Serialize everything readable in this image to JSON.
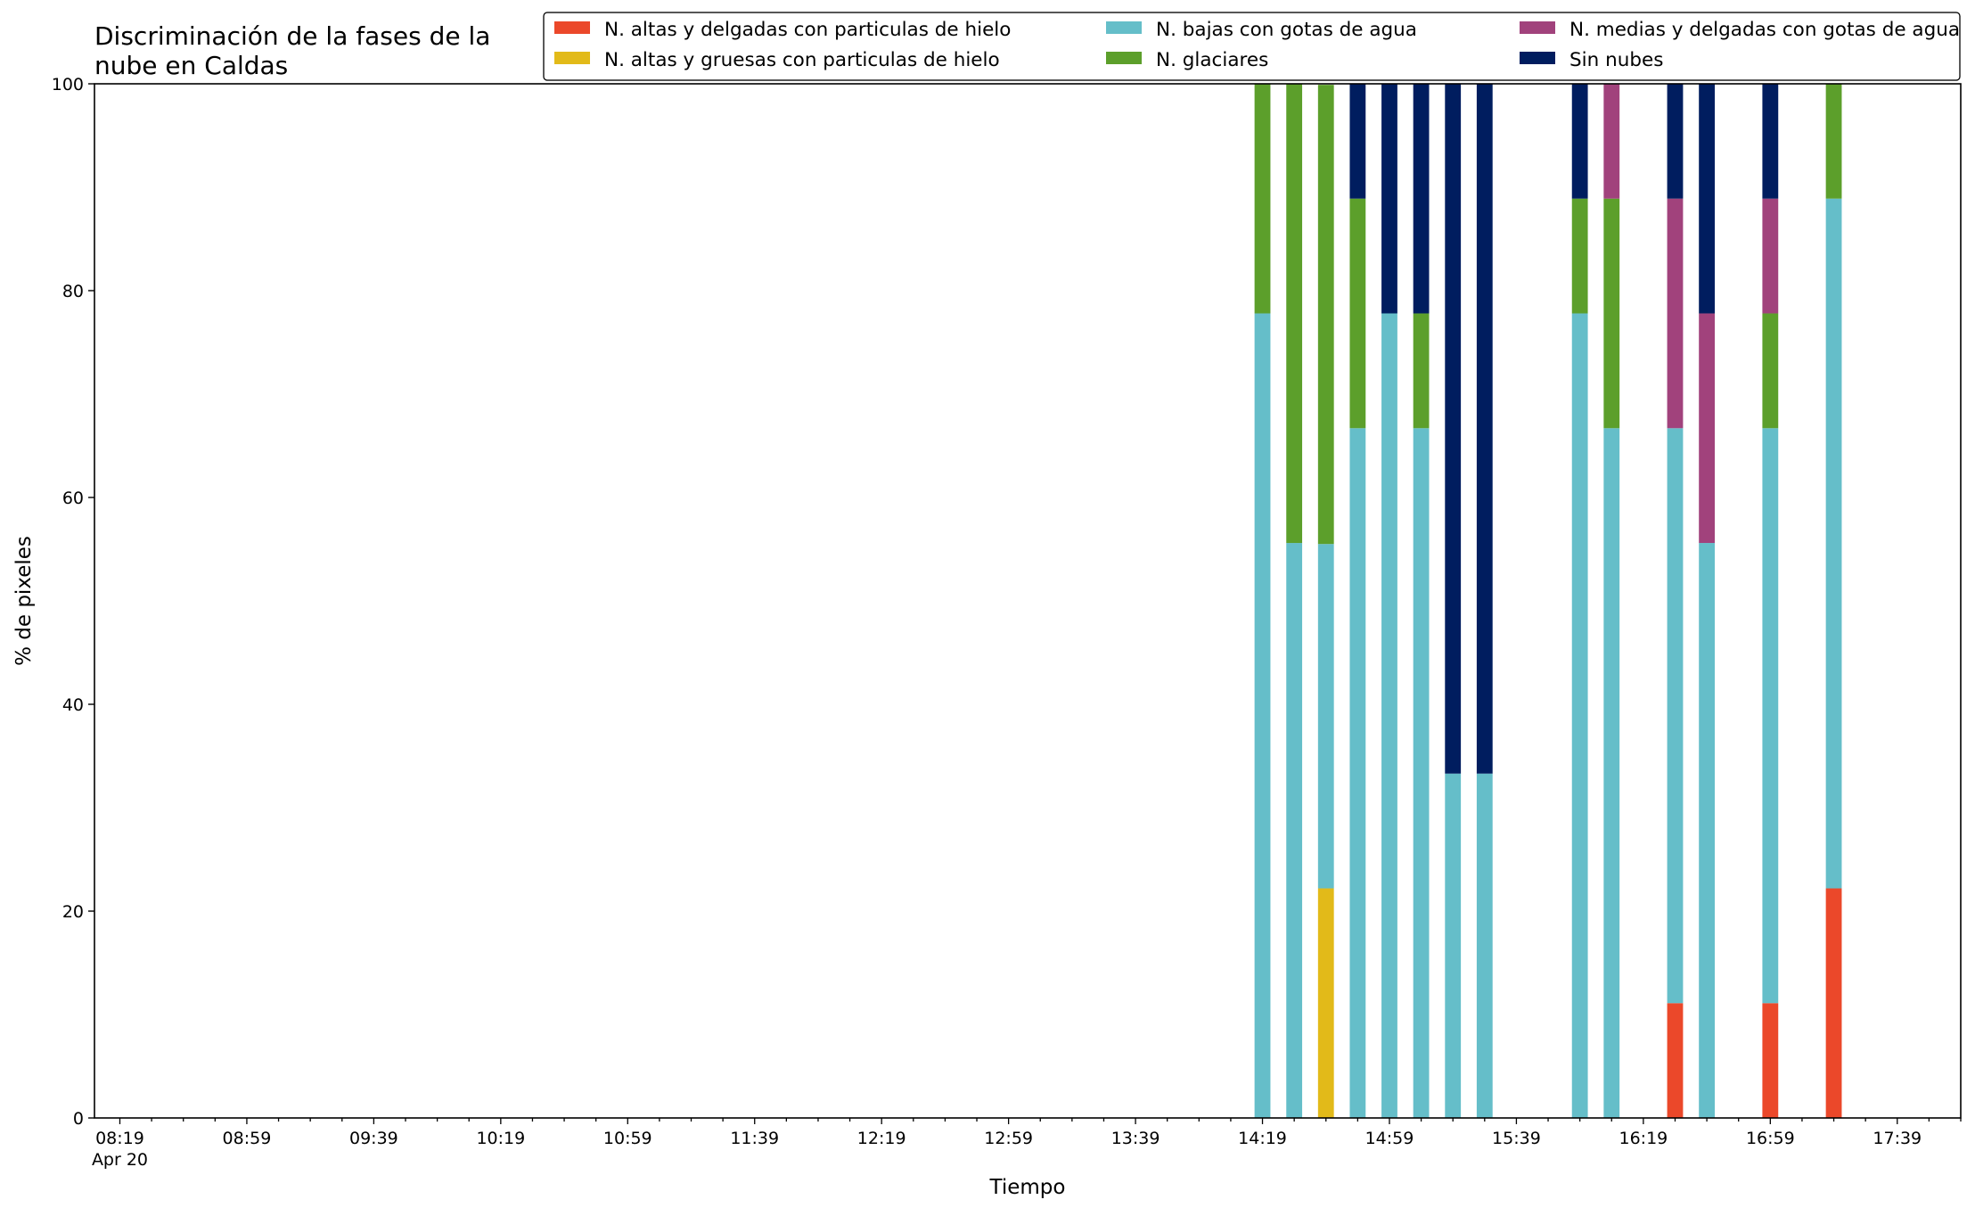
{
  "chart_data": {
    "type": "bar",
    "stacked": true,
    "title_lines": [
      "Discriminación de la fases de la",
      "nube en Caldas"
    ],
    "xlabel": "Tiempo",
    "ylabel": "% de pixeles",
    "ylim": [
      0,
      100
    ],
    "yticks": [
      0,
      20,
      40,
      60,
      80,
      100
    ],
    "xlim": [
      "08:11",
      "17:59"
    ],
    "xtick_labels": [
      "08:19",
      "08:59",
      "09:39",
      "10:19",
      "10:59",
      "11:39",
      "12:19",
      "12:59",
      "13:39",
      "14:19",
      "14:59",
      "15:39",
      "16:19",
      "16:59",
      "17:39"
    ],
    "date_label": "Apr 20",
    "bar_width_minutes": 5,
    "grid": false,
    "legend_position": "top-right",
    "series": [
      {
        "name": "N. altas y delgadas con particulas de hielo",
        "color": "#EB482A"
      },
      {
        "name": "N. altas y gruesas con particulas de hielo",
        "color": "#E2BA19"
      },
      {
        "name": "N. bajas con gotas de agua",
        "color": "#65BEC9"
      },
      {
        "name": "N. glaciares",
        "color": "#5C9F2B"
      },
      {
        "name": "N. medias y delgadas con gotas de agua",
        "color": "#A1427C"
      },
      {
        "name": "Sin nubes",
        "color": "#001D5F"
      }
    ],
    "bars": [
      {
        "time": "14:19",
        "values": [
          0,
          0,
          77.8,
          22.2,
          0,
          0
        ]
      },
      {
        "time": "14:29",
        "values": [
          0,
          0,
          55.6,
          44.4,
          0,
          0
        ]
      },
      {
        "time": "14:39",
        "values": [
          0,
          22.2,
          33.3,
          44.4,
          0,
          0
        ]
      },
      {
        "time": "14:49",
        "values": [
          0,
          0,
          66.7,
          22.2,
          0,
          11.1
        ]
      },
      {
        "time": "14:59",
        "values": [
          0,
          0,
          77.8,
          0,
          0,
          22.2
        ]
      },
      {
        "time": "15:09",
        "values": [
          0,
          0,
          66.7,
          11.1,
          0,
          22.2
        ]
      },
      {
        "time": "15:19",
        "values": [
          0,
          0,
          33.3,
          0,
          0,
          66.7
        ]
      },
      {
        "time": "15:29",
        "values": [
          0,
          0,
          33.3,
          0,
          0,
          66.7
        ]
      },
      {
        "time": "15:59",
        "values": [
          0,
          0,
          77.8,
          11.1,
          0,
          11.1
        ]
      },
      {
        "time": "16:09",
        "values": [
          0,
          0,
          66.7,
          22.2,
          11.1,
          0
        ]
      },
      {
        "time": "16:29",
        "values": [
          11.1,
          0,
          55.6,
          0,
          22.2,
          11.1
        ]
      },
      {
        "time": "16:39",
        "values": [
          0,
          0,
          55.6,
          0,
          22.2,
          22.2
        ]
      },
      {
        "time": "16:59",
        "values": [
          11.1,
          0,
          55.6,
          11.1,
          11.1,
          11.1
        ]
      },
      {
        "time": "17:19",
        "values": [
          22.2,
          0,
          66.7,
          11.1,
          0,
          0
        ]
      }
    ]
  }
}
